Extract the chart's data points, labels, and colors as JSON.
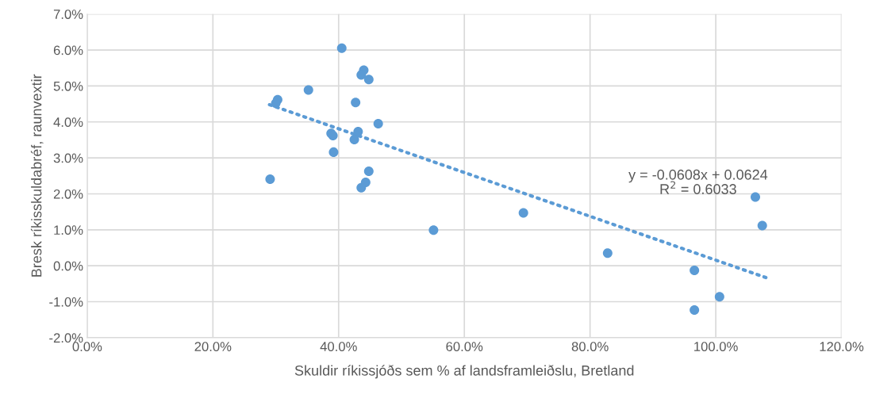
{
  "chart_data": {
    "type": "scatter",
    "xlabel": "Skuldir ríkissjóðs sem % af landsframleiðslu, Bretland",
    "ylabel": "Bresk ríkisskuldabréf, raunvextir",
    "series": [
      {
        "color": "#5b9bd5",
        "marker": "circle",
        "x": [
          29.1,
          30.3,
          30.0,
          35.2,
          40.5,
          44.0,
          43.6,
          44.8,
          42.7,
          46.3,
          43.1,
          42.5,
          38.8,
          39.1,
          39.2,
          44.8,
          44.3,
          43.6,
          55.1,
          69.4,
          82.8,
          96.6,
          96.6,
          100.6,
          106.3,
          107.4
        ],
        "values": [
          2.41,
          4.62,
          4.52,
          4.89,
          6.05,
          5.44,
          5.31,
          5.18,
          4.54,
          3.95,
          3.73,
          3.51,
          3.68,
          3.62,
          3.16,
          2.63,
          2.32,
          2.17,
          0.99,
          1.47,
          0.35,
          -0.13,
          -1.23,
          -0.86,
          1.91,
          1.12
        ]
      },
      {
        "type": "line",
        "color": "#5b9bd5",
        "line_style": "dotted",
        "x": [
          29.0,
          108.0
        ],
        "values": [
          4.48,
          -0.33
        ]
      }
    ],
    "annotations": [
      "y = -0.0608x + 0.0624",
      "R$^{2}$ = 0.6033"
    ],
    "xlim": [
      0,
      120
    ],
    "ylim": [
      -2,
      7
    ],
    "xticks": [
      {
        "value": 0,
        "label": "0.0%"
      },
      {
        "value": 20,
        "label": "20.0%"
      },
      {
        "value": 40,
        "label": "40.0%"
      },
      {
        "value": 60,
        "label": "60.0%"
      },
      {
        "value": 80,
        "label": "80.0%"
      },
      {
        "value": 100,
        "label": "100.0%"
      },
      {
        "value": 120,
        "label": "120.0%"
      }
    ],
    "yticks": [
      {
        "value": -2,
        "label": "-2.0%"
      },
      {
        "value": -1,
        "label": "-1.0%"
      },
      {
        "value": 0,
        "label": "0.0%"
      },
      {
        "value": 1,
        "label": "1.0%"
      },
      {
        "value": 2,
        "label": "2.0%"
      },
      {
        "value": 3,
        "label": "3.0%"
      },
      {
        "value": 4,
        "label": "4.0%"
      },
      {
        "value": 5,
        "label": "5.0%"
      },
      {
        "value": 6,
        "label": "6.0%"
      },
      {
        "value": 7,
        "label": "7.0%"
      }
    ],
    "grid": true,
    "legend": false
  }
}
